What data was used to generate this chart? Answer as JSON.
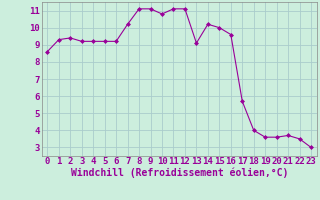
{
  "x": [
    0,
    1,
    2,
    3,
    4,
    5,
    6,
    7,
    8,
    9,
    10,
    11,
    12,
    13,
    14,
    15,
    16,
    17,
    18,
    19,
    20,
    21,
    22,
    23
  ],
  "y": [
    8.6,
    9.3,
    9.4,
    9.2,
    9.2,
    9.2,
    9.2,
    10.2,
    11.1,
    11.1,
    10.8,
    11.1,
    11.1,
    9.1,
    10.2,
    10.0,
    9.6,
    5.7,
    4.0,
    3.6,
    3.6,
    3.7,
    3.5,
    3.0
  ],
  "line_color": "#990099",
  "marker": "D",
  "marker_size": 2,
  "bg_color": "#cceedd",
  "grid_color": "#aacccc",
  "xlabel": "Windchill (Refroidissement éolien,°C)",
  "xlabel_fontsize": 7,
  "tick_fontsize": 6.5,
  "xlim": [
    -0.5,
    23.5
  ],
  "ylim": [
    2.5,
    11.5
  ],
  "yticks": [
    3,
    4,
    5,
    6,
    7,
    8,
    9,
    10,
    11
  ],
  "xticks": [
    0,
    1,
    2,
    3,
    4,
    5,
    6,
    7,
    8,
    9,
    10,
    11,
    12,
    13,
    14,
    15,
    16,
    17,
    18,
    19,
    20,
    21,
    22,
    23
  ]
}
